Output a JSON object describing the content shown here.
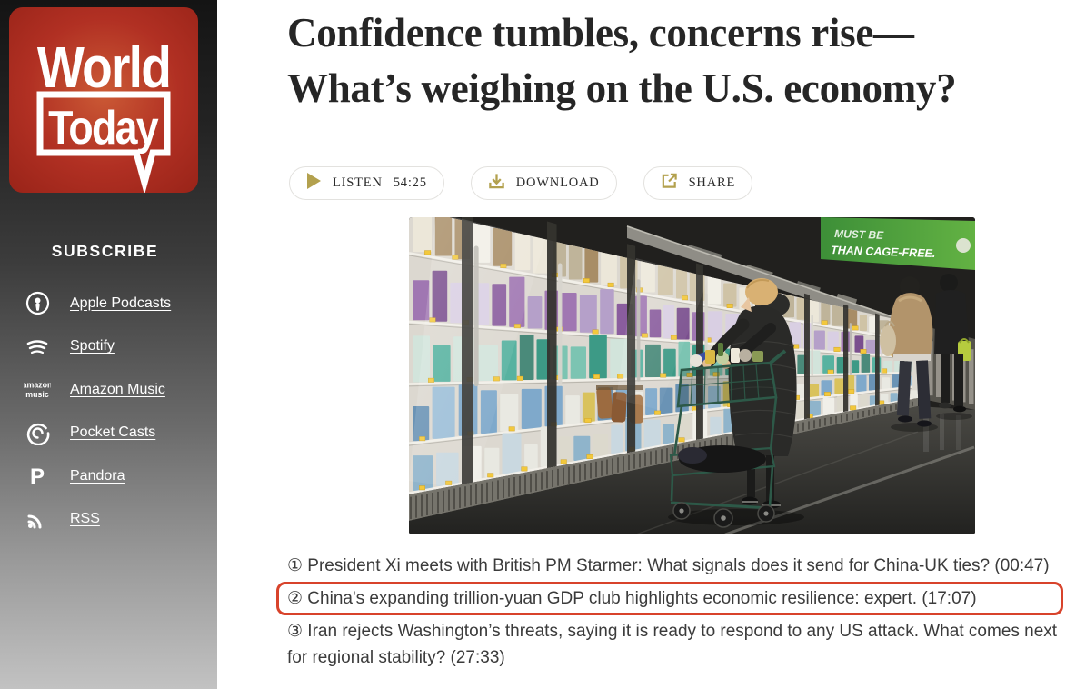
{
  "sidebar": {
    "logo": {
      "line1": "World",
      "line2": "Today"
    },
    "subscribe_heading": "SUBSCRIBE",
    "links": [
      {
        "label": "Apple Podcasts"
      },
      {
        "label": "Spotify"
      },
      {
        "label": "Amazon Music",
        "icon_text1": "amazon",
        "icon_text2": "music"
      },
      {
        "label": "Pocket Casts"
      },
      {
        "label": "Pandora"
      },
      {
        "label": "RSS"
      }
    ]
  },
  "main": {
    "headline_line1": "Confidence tumbles, concerns rise—",
    "headline_line2": "What’s weighing on the U.S. economy?",
    "buttons": {
      "listen_label": "LISTEN",
      "listen_time": "54:25",
      "download_label": "DOWNLOAD",
      "share_label": "SHARE"
    },
    "photo": {
      "sign_line1": "MUST BE",
      "sign_line2": "THAN CAGE-FREE."
    },
    "episodes": [
      {
        "text": "① President Xi meets with British PM Starmer: What signals does it send for China-UK ties? (00:47)"
      },
      {
        "text": "② China's expanding trillion-yuan GDP club highlights economic resilience: expert. (17:07)"
      },
      {
        "text": "③ Iran rejects Washington’s threats, saying it is ready to respond to any US attack. What comes next for regional stability? (27:33)"
      }
    ]
  },
  "colors": {
    "accent_gold": "#b3a14e",
    "highlight_red": "#d8432b",
    "logo_red": "#b02f22"
  }
}
